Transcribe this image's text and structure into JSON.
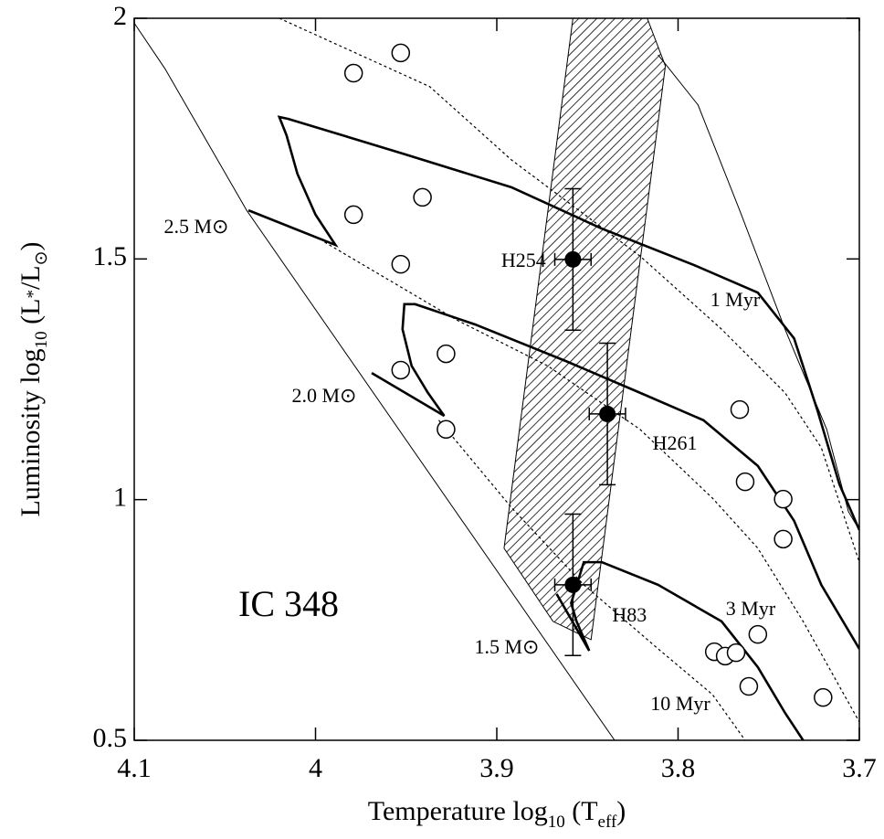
{
  "chart_data": {
    "type": "scatter",
    "x_label": [
      "Temperature log",
      "10",
      " (T",
      "eff",
      ")"
    ],
    "y_label": [
      "Luminosity log",
      "10",
      " (L",
      "*",
      "/L",
      "⊙",
      ")"
    ],
    "xlim": [
      4.1,
      3.7
    ],
    "ylim": [
      0.5,
      2
    ],
    "xticks": [
      4.1,
      4,
      3.9,
      3.8,
      3.7
    ],
    "yticks": [
      0.5,
      1,
      1.5,
      2
    ],
    "band": {
      "x": [
        3.858,
        3.817,
        3.807,
        3.848,
        3.869,
        3.896
      ],
      "y": [
        2.0,
        2.0,
        1.901,
        0.709,
        0.747,
        0.899
      ]
    },
    "lines": [
      {
        "style": "thin",
        "x": [
          4.1,
          4.083,
          4.038,
          3.835
        ],
        "y": [
          1.99,
          1.895,
          1.601,
          0.5
        ]
      },
      {
        "style": "thick",
        "x": [
          4.037,
          3.989,
          4.0,
          4.01,
          4.016,
          4.02,
          4.015,
          3.952,
          3.892,
          3.842,
          3.791,
          3.756,
          3.736,
          3.723,
          3.711,
          3.7
        ],
        "y": [
          1.601,
          1.529,
          1.592,
          1.677,
          1.757,
          1.795,
          1.791,
          1.719,
          1.649,
          1.563,
          1.487,
          1.43,
          1.335,
          1.184,
          1.032,
          0.937
        ]
      },
      {
        "style": "thick",
        "x": [
          3.969,
          3.929,
          3.938,
          3.947,
          3.952,
          3.951,
          3.945,
          3.912,
          3.862,
          3.821,
          3.786,
          3.756,
          3.736,
          3.721,
          3.7
        ],
        "y": [
          1.263,
          1.174,
          1.222,
          1.278,
          1.354,
          1.406,
          1.406,
          1.364,
          1.288,
          1.222,
          1.165,
          1.07,
          0.956,
          0.823,
          0.69
        ]
      },
      {
        "style": "thick",
        "x": [
          3.867,
          3.849,
          3.856,
          3.859,
          3.852,
          3.842,
          3.811,
          3.776,
          3.756,
          3.741,
          3.731
        ],
        "y": [
          0.804,
          0.686,
          0.747,
          0.785,
          0.87,
          0.87,
          0.823,
          0.747,
          0.652,
          0.557,
          0.5
        ]
      },
      {
        "style": "thin",
        "x": [
          3.811,
          3.789,
          3.766,
          3.741,
          3.718,
          3.706,
          3.7
        ],
        "y": [
          1.924,
          1.82,
          1.601,
          1.354,
          1.146,
          0.975,
          0.937
        ]
      },
      {
        "style": "dotted",
        "x": [
          4.02,
          3.937,
          3.892,
          3.821,
          3.776,
          3.741,
          3.721,
          3.7
        ],
        "y": [
          2.0,
          1.858,
          1.706,
          1.506,
          1.354,
          1.222,
          1.108,
          0.87
        ]
      },
      {
        "style": "dotted",
        "x": [
          3.995,
          3.922,
          3.872,
          3.821,
          3.781,
          3.756,
          3.731,
          3.7
        ],
        "y": [
          1.535,
          1.373,
          1.278,
          1.146,
          1.003,
          0.899,
          0.747,
          0.538
        ]
      },
      {
        "style": "dotted",
        "x": [
          3.932,
          3.892,
          3.852,
          3.811,
          3.781,
          3.763
        ],
        "y": [
          1.165,
          0.984,
          0.823,
          0.69,
          0.595,
          0.5
        ]
      }
    ],
    "points": {
      "x": [
        3.979,
        3.953,
        3.941,
        3.979,
        3.953,
        3.928,
        3.953,
        3.928,
        3.766,
        3.763,
        3.742,
        3.742,
        3.756,
        3.78,
        3.774,
        3.768,
        3.761,
        3.72
      ],
      "y": [
        1.886,
        1.928,
        1.628,
        1.592,
        1.489,
        1.303,
        1.269,
        1.146,
        1.187,
        1.037,
        1.001,
        0.918,
        0.72,
        0.684,
        0.675,
        0.682,
        0.612,
        0.589
      ]
    },
    "stars": [
      {
        "name": "H254",
        "x": 3.858,
        "y": 1.499,
        "xerr": 0.01,
        "yerr": 0.147
      },
      {
        "name": "H261",
        "x": 3.839,
        "y": 1.178,
        "xerr": 0.01,
        "yerr": 0.147
      },
      {
        "name": "H83",
        "x": 3.858,
        "y": 0.823,
        "xerr": 0.01,
        "yerr": 0.147
      }
    ],
    "annotations": [
      "2.5 M⊙",
      "2.0 M⊙",
      "1.5 M⊙",
      "1 Myr",
      "3 Myr",
      "10 Myr",
      "IC 348"
    ]
  }
}
